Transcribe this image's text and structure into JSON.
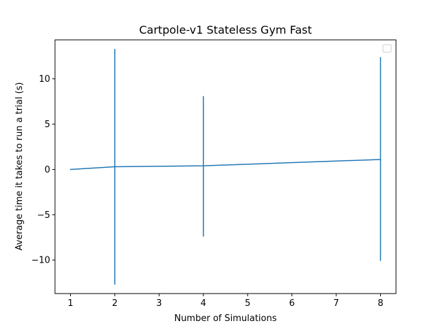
{
  "chart_data": {
    "type": "line",
    "title": "Cartpole-v1 Stateless Gym Fast",
    "xlabel": "Number of Simulations",
    "ylabel": "Average time it takes to run a trial (s)",
    "x": [
      1,
      2,
      4,
      8
    ],
    "series": [
      {
        "values": [
          0.0,
          0.3,
          0.4,
          1.1
        ],
        "error_bars": [
          {
            "x": 2,
            "low": -12.7,
            "high": 13.3
          },
          {
            "x": 4,
            "low": -7.4,
            "high": 8.1
          },
          {
            "x": 8,
            "low": -10.1,
            "high": 12.4
          }
        ]
      }
    ],
    "xlim": [
      0.65,
      8.35
    ],
    "ylim": [
      -13.7,
      14.3
    ],
    "xticks": [
      1,
      2,
      3,
      4,
      5,
      6,
      7,
      8
    ],
    "yticks": [
      -10,
      -5,
      0,
      5,
      10
    ],
    "ytick_labels": [
      "−10",
      "−5",
      "0",
      "5",
      "10"
    ],
    "grid": false,
    "legend": {
      "placement": "top-right",
      "entries": []
    },
    "colors": {
      "series": "#1f77b4",
      "axes": "#000000",
      "background": "#ffffff"
    }
  }
}
